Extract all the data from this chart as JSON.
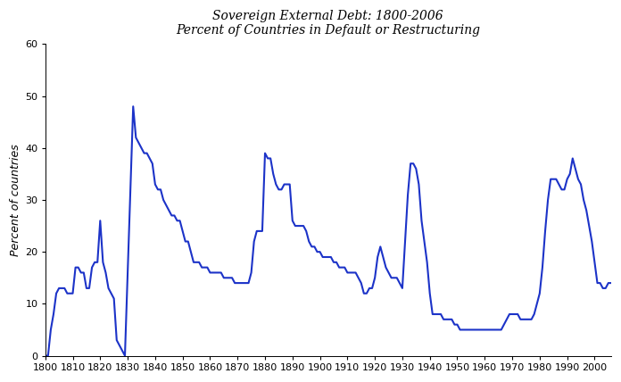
{
  "title_line1": "Sovereign External Debt: 1800-2006",
  "title_line2": "Percent of Countries in Default or Restructuring",
  "ylabel": "Percent of countries",
  "xlim": [
    1800,
    2006
  ],
  "ylim": [
    0,
    60
  ],
  "yticks": [
    0,
    10,
    20,
    30,
    40,
    50,
    60
  ],
  "xticks": [
    1800,
    1810,
    1820,
    1830,
    1840,
    1850,
    1860,
    1870,
    1880,
    1890,
    1900,
    1910,
    1920,
    1930,
    1940,
    1950,
    1960,
    1970,
    1980,
    1990,
    2000
  ],
  "line_color": "#1c33c8",
  "line_width": 1.5,
  "background_color": "#ffffff",
  "years": [
    1800,
    1801,
    1802,
    1803,
    1804,
    1805,
    1806,
    1807,
    1808,
    1809,
    1810,
    1811,
    1812,
    1813,
    1814,
    1815,
    1816,
    1817,
    1818,
    1819,
    1820,
    1821,
    1822,
    1823,
    1824,
    1825,
    1826,
    1827,
    1828,
    1829,
    1830,
    1831,
    1832,
    1833,
    1834,
    1835,
    1836,
    1837,
    1838,
    1839,
    1840,
    1841,
    1842,
    1843,
    1844,
    1845,
    1846,
    1847,
    1848,
    1849,
    1850,
    1851,
    1852,
    1853,
    1854,
    1855,
    1856,
    1857,
    1858,
    1859,
    1860,
    1861,
    1862,
    1863,
    1864,
    1865,
    1866,
    1867,
    1868,
    1869,
    1870,
    1871,
    1872,
    1873,
    1874,
    1875,
    1876,
    1877,
    1878,
    1879,
    1880,
    1881,
    1882,
    1883,
    1884,
    1885,
    1886,
    1887,
    1888,
    1889,
    1890,
    1891,
    1892,
    1893,
    1894,
    1895,
    1896,
    1897,
    1898,
    1899,
    1900,
    1901,
    1902,
    1903,
    1904,
    1905,
    1906,
    1907,
    1908,
    1909,
    1910,
    1911,
    1912,
    1913,
    1914,
    1915,
    1916,
    1917,
    1918,
    1919,
    1920,
    1921,
    1922,
    1923,
    1924,
    1925,
    1926,
    1927,
    1928,
    1929,
    1930,
    1931,
    1932,
    1933,
    1934,
    1935,
    1936,
    1937,
    1938,
    1939,
    1940,
    1941,
    1942,
    1943,
    1944,
    1945,
    1946,
    1947,
    1948,
    1949,
    1950,
    1951,
    1952,
    1953,
    1954,
    1955,
    1956,
    1957,
    1958,
    1959,
    1960,
    1961,
    1962,
    1963,
    1964,
    1965,
    1966,
    1967,
    1968,
    1969,
    1970,
    1971,
    1972,
    1973,
    1974,
    1975,
    1976,
    1977,
    1978,
    1979,
    1980,
    1981,
    1982,
    1983,
    1984,
    1985,
    1986,
    1987,
    1988,
    1989,
    1990,
    1991,
    1992,
    1993,
    1994,
    1995,
    1996,
    1997,
    1998,
    1999,
    2000,
    2001,
    2002,
    2003,
    2004,
    2005,
    2006
  ],
  "values": [
    0,
    0,
    5,
    8,
    12,
    13,
    13,
    13,
    12,
    12,
    12,
    17,
    17,
    16,
    16,
    13,
    13,
    17,
    18,
    18,
    26,
    18,
    16,
    13,
    12,
    11,
    3,
    2,
    1,
    0,
    16,
    32,
    48,
    42,
    41,
    40,
    39,
    39,
    38,
    37,
    33,
    32,
    32,
    30,
    29,
    28,
    27,
    27,
    26,
    26,
    24,
    22,
    22,
    20,
    18,
    18,
    18,
    17,
    17,
    17,
    16,
    16,
    16,
    16,
    16,
    15,
    15,
    15,
    15,
    14,
    14,
    14,
    14,
    14,
    14,
    16,
    22,
    24,
    24,
    24,
    39,
    38,
    38,
    35,
    33,
    32,
    32,
    33,
    33,
    33,
    26,
    25,
    25,
    25,
    25,
    24,
    22,
    21,
    21,
    20,
    20,
    19,
    19,
    19,
    19,
    18,
    18,
    17,
    17,
    17,
    16,
    16,
    16,
    16,
    15,
    14,
    12,
    12,
    13,
    13,
    15,
    19,
    21,
    19,
    17,
    16,
    15,
    15,
    15,
    14,
    13,
    22,
    31,
    37,
    37,
    36,
    33,
    26,
    22,
    18,
    12,
    8,
    8,
    8,
    8,
    7,
    7,
    7,
    7,
    6,
    6,
    5,
    5,
    5,
    5,
    5,
    5,
    5,
    5,
    5,
    5,
    5,
    5,
    5,
    5,
    5,
    5,
    6,
    7,
    8,
    8,
    8,
    8,
    7,
    7,
    7,
    7,
    7,
    8,
    10,
    12,
    17,
    24,
    30,
    34,
    34,
    34,
    33,
    32,
    32,
    34,
    35,
    38,
    36,
    34,
    33,
    30,
    28,
    25,
    22,
    18,
    14,
    14,
    13,
    13,
    14,
    14
  ]
}
